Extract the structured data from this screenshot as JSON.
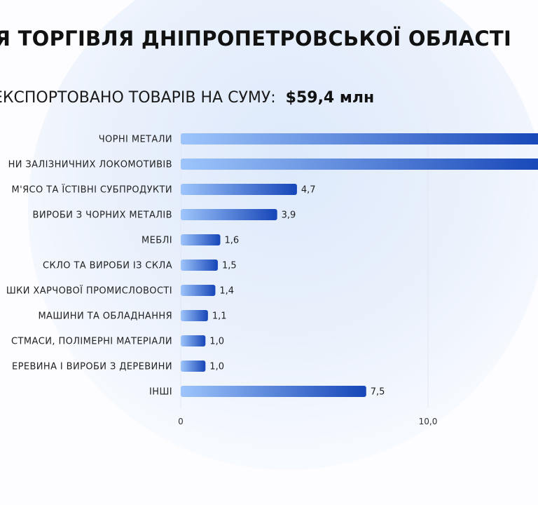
{
  "header": {
    "title": "НЯ ТОРГІВЛЯ ДНІПРОПЕТРОВСЬКОЇ ОБЛАСТІ",
    "subtitle_label": "ЕКСПОРТОВАНО ТОВАРІВ НА СУМУ:",
    "subtitle_amount": "$59,4 млн"
  },
  "chart_data": {
    "type": "bar",
    "orientation": "horizontal",
    "categories": [
      "ЧОРНІ МЕТАЛИ",
      "НИ ЗАЛІЗНИЧНИХ ЛОКОМОТИВІВ",
      "М'ЯСО ТА ЇСТІВНІ СУБПРОДУКТИ",
      "ВИРОБИ З ЧОРНИХ МЕТАЛІВ",
      "МЕБЛІ",
      "СКЛО ТА ВИРОБИ ІЗ СКЛА",
      "ШКИ ХАРЧОВОЇ ПРОМИСЛОВОСТІ",
      "МАШИНИ ТА ОБЛАДНАННЯ",
      "СТМАСИ, ПОЛІМЕРНІ МАТЕРІАЛИ",
      "ЕРЕВИНА І ВИРОБИ З ДЕРЕВИНИ",
      "ІНШІ"
    ],
    "values": [
      null,
      null,
      4.7,
      3.9,
      1.6,
      1.5,
      1.4,
      1.1,
      1.0,
      1.0,
      7.5
    ],
    "value_labels": [
      "",
      "",
      "4,7",
      "3,9",
      "1,6",
      "1,5",
      "1,4",
      "1,1",
      "1,0",
      "1,0",
      "7,5"
    ],
    "x_ticks": [
      0,
      10
    ],
    "x_tick_labels": [
      "0",
      "10,0"
    ],
    "bar_gradient": [
      "#9ec5fb",
      "#1646b8"
    ],
    "title": "",
    "xlabel": "",
    "ylabel": ""
  }
}
